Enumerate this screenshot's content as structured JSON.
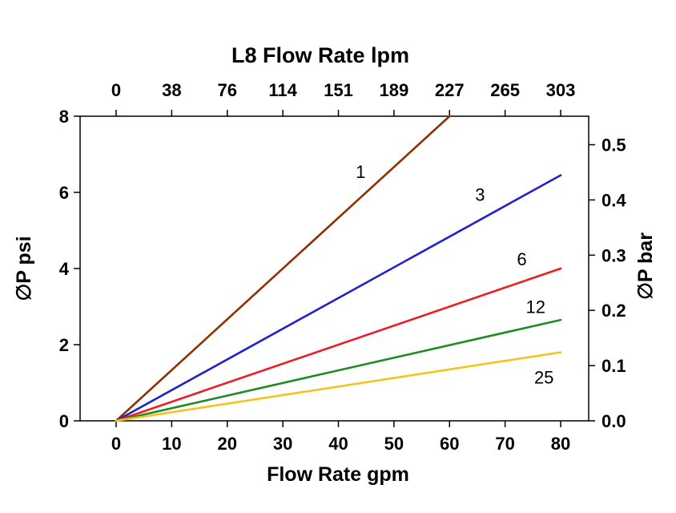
{
  "chart_data": {
    "type": "line",
    "title": "L8 Flow Rate lpm",
    "xlabel": "Flow Rate gpm",
    "ylabel_left": "∅P psi",
    "ylabel_right": "∅P bar",
    "legend_position": "none",
    "grid": false,
    "x_bottom": {
      "label": "Flow Rate gpm",
      "unit": "gpm",
      "range": [
        0,
        80
      ],
      "ticks": [
        0,
        10,
        20,
        30,
        40,
        50,
        60,
        70,
        80
      ]
    },
    "x_top": {
      "label": "L8 Flow Rate lpm",
      "unit": "lpm",
      "ticks": [
        "0",
        "38",
        "76",
        "114",
        "151",
        "189",
        "227",
        "265",
        "303"
      ]
    },
    "y_left": {
      "label": "∅P psi",
      "unit": "psi",
      "range": [
        0,
        8
      ],
      "ticks": [
        0,
        2,
        4,
        6,
        8
      ]
    },
    "y_right": {
      "label": "∅P bar",
      "unit": "bar",
      "ticks": [
        "0.0",
        "0.1",
        "0.2",
        "0.3",
        "0.4",
        "0.5"
      ],
      "psi_per_bar": 14.5038
    },
    "series": [
      {
        "name": "1",
        "color": "#903000",
        "x": [
          0,
          60
        ],
        "y": [
          0,
          8.0
        ],
        "label_at": {
          "x": 44.0,
          "y": 6.55
        }
      },
      {
        "name": "3",
        "color": "#2121cc",
        "x": [
          0,
          80
        ],
        "y": [
          0,
          6.45
        ],
        "label_at": {
          "x": 65.5,
          "y": 5.95
        }
      },
      {
        "name": "6",
        "color": "#ee1c25",
        "x": [
          0,
          80
        ],
        "y": [
          0,
          4.0
        ],
        "label_at": {
          "x": 73.0,
          "y": 4.25
        }
      },
      {
        "name": "12",
        "color": "#1f8b24",
        "x": [
          0,
          80
        ],
        "y": [
          0,
          2.65
        ],
        "label_at": {
          "x": 75.5,
          "y": 3.0
        }
      },
      {
        "name": "25",
        "color": "#f2c41d",
        "x": [
          0,
          80
        ],
        "y": [
          0,
          1.8
        ],
        "label_at": {
          "x": 77.0,
          "y": 1.15
        }
      }
    ]
  }
}
